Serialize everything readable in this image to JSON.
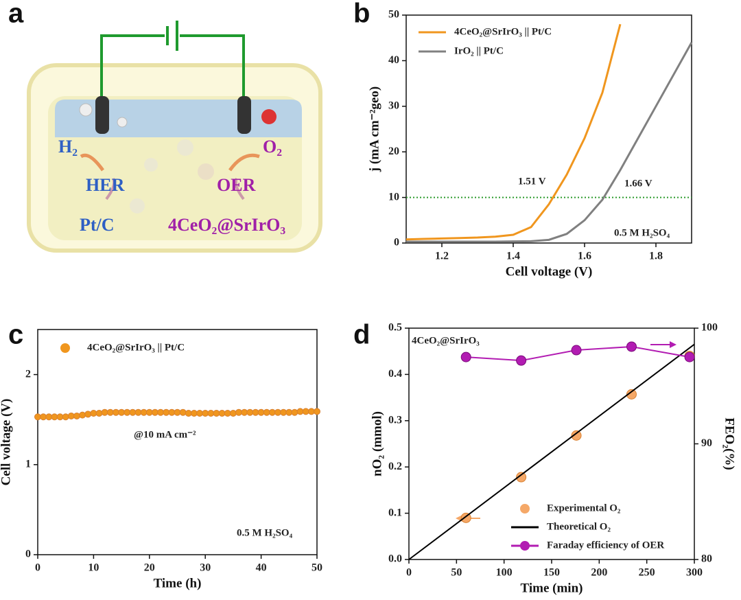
{
  "panel_labels": [
    "a",
    "b",
    "c",
    "d"
  ],
  "schematic": {
    "labels": [
      "H₂",
      "O₂",
      "HER",
      "OER",
      "Pt/C",
      "4CeO₂@SrIrO₃"
    ]
  },
  "chart_data": [
    {
      "type": "line",
      "xlabel": "Cell voltage (V)",
      "ylabel": "j (mA cm⁻²geo)",
      "x": [
        1.1,
        1.15,
        1.2,
        1.25,
        1.3,
        1.35,
        1.4,
        1.45,
        1.5,
        1.55,
        1.6,
        1.65,
        1.7,
        1.75,
        1.8,
        1.85,
        1.9
      ],
      "xlim": [
        1.1,
        1.9
      ],
      "xticks": [
        1.2,
        1.4,
        1.6,
        1.8
      ],
      "ylim": [
        0,
        50
      ],
      "yticks": [
        0,
        10,
        20,
        30,
        40,
        50
      ],
      "series": [
        {
          "name": "4CeO₂@SrIrO₃ || Pt/C",
          "color": "#f0961e",
          "values": [
            0.8,
            0.9,
            1.0,
            1.1,
            1.2,
            1.4,
            1.8,
            3.5,
            8.5,
            15,
            23,
            33,
            48,
            null,
            null,
            null,
            null
          ]
        },
        {
          "name": "IrO₂ || Pt/C",
          "color": "#808080",
          "values": [
            0.3,
            0.3,
            0.3,
            0.3,
            0.3,
            0.3,
            0.35,
            0.4,
            0.7,
            2,
            5,
            9.5,
            16,
            23,
            30,
            37,
            44
          ]
        }
      ],
      "reference_line": {
        "value": 10,
        "color": "#2a9a2a"
      },
      "annotations": [
        "1.51 V",
        "1.66 V",
        "0.5 M H₂SO₄"
      ],
      "legend": "upper left"
    },
    {
      "type": "scatter",
      "xlabel": "Time (h)",
      "ylabel": "Cell voltage (V)",
      "x": [
        0,
        1,
        2,
        3,
        4,
        5,
        6,
        7,
        8,
        9,
        10,
        11,
        12,
        13,
        14,
        15,
        16,
        17,
        18,
        19,
        20,
        21,
        22,
        23,
        24,
        25,
        26,
        27,
        28,
        29,
        30,
        31,
        32,
        33,
        34,
        35,
        36,
        37,
        38,
        39,
        40,
        41,
        42,
        43,
        44,
        45,
        46,
        47,
        48,
        49,
        50
      ],
      "xlim": [
        0,
        50
      ],
      "xticks": [
        0,
        10,
        20,
        30,
        40,
        50
      ],
      "ylim": [
        0,
        2.5
      ],
      "yticks": [
        0,
        1,
        2
      ],
      "series": [
        {
          "name": "4CeO₂@SrIrO₃ || Pt/C",
          "color": "#f0961e",
          "values": [
            1.53,
            1.53,
            1.53,
            1.53,
            1.53,
            1.53,
            1.54,
            1.54,
            1.55,
            1.56,
            1.57,
            1.57,
            1.58,
            1.58,
            1.58,
            1.58,
            1.58,
            1.58,
            1.58,
            1.58,
            1.58,
            1.58,
            1.58,
            1.58,
            1.58,
            1.58,
            1.58,
            1.57,
            1.57,
            1.57,
            1.57,
            1.57,
            1.57,
            1.57,
            1.57,
            1.57,
            1.58,
            1.58,
            1.58,
            1.58,
            1.58,
            1.58,
            1.58,
            1.58,
            1.58,
            1.58,
            1.58,
            1.59,
            1.59,
            1.59,
            1.59
          ]
        }
      ],
      "annotations": [
        "@10 mA cm⁻²",
        "0.5 M H₂SO₄"
      ],
      "legend": "upper left"
    },
    {
      "type": "combo",
      "xlabel": "Time (min)",
      "ylabel": "nO₂ (mmol)",
      "y2label": "FEO₂(%)",
      "xlim": [
        0,
        300
      ],
      "xticks": [
        0,
        50,
        100,
        150,
        200,
        250,
        300
      ],
      "ylim": [
        0,
        0.5
      ],
      "yticks": [
        {
          "value": 0,
          "label": "0.0"
        },
        0.1,
        0.2,
        0.3,
        0.4,
        0.5
      ],
      "y2lim": [
        80,
        100
      ],
      "y2ticks": [
        80,
        90,
        100
      ],
      "series": [
        {
          "name": "Experimental O₂",
          "type": "scatter",
          "color": "#f5a868",
          "x": [
            60,
            118,
            176,
            234,
            295
          ],
          "values": [
            0.09,
            0.178,
            0.268,
            0.357,
            0.44
          ]
        },
        {
          "name": "Theoretical O₂",
          "type": "line",
          "color": "#000000",
          "x": [
            0,
            300
          ],
          "values": [
            0,
            0.465
          ]
        },
        {
          "name": "Faraday efficiency of OER",
          "type": "line-marker",
          "axis": "y2",
          "color": "#b21cb2",
          "x": [
            60,
            118,
            176,
            234,
            295
          ],
          "values": [
            97.5,
            97.2,
            98.1,
            98.4,
            97.5
          ]
        }
      ],
      "annotations": [
        "4CeO₂@SrIrO₃"
      ],
      "legend": "lower right"
    }
  ]
}
